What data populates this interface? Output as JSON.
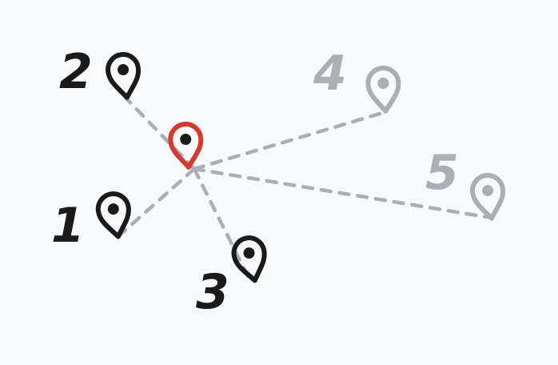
{
  "colors": {
    "background": "#f8f9fb",
    "active": "#1a1a1a",
    "inactive": "#a9afb7",
    "center": "#d63a2f",
    "connector": "#a9afb7"
  },
  "center_pin": {
    "icon": "map-pin-icon",
    "color": "#d63a2f"
  },
  "pins": [
    {
      "label": "1",
      "state": "active",
      "icon": "map-pin-icon"
    },
    {
      "label": "2",
      "state": "active",
      "icon": "map-pin-icon"
    },
    {
      "label": "3",
      "state": "active",
      "icon": "map-pin-icon"
    },
    {
      "label": "4",
      "state": "inactive",
      "icon": "map-pin-icon"
    },
    {
      "label": "5",
      "state": "inactive",
      "icon": "map-pin-icon"
    }
  ]
}
